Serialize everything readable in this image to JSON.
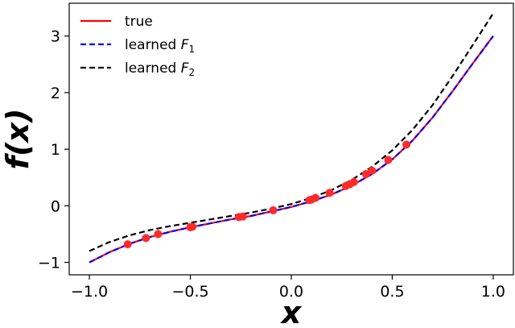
{
  "chart_data": {
    "type": "line",
    "xlabel": "x",
    "ylabel": "f(x)",
    "xlim": [
      -1.1,
      1.1
    ],
    "ylim": [
      -1.22,
      3.58
    ],
    "xticks": [
      -1.0,
      -0.5,
      0.0,
      0.5,
      1.0
    ],
    "xtick_labels": [
      "−1.0",
      "−0.5",
      "0.0",
      "0.5",
      "1.0"
    ],
    "yticks": [
      -1,
      0,
      1,
      2,
      3
    ],
    "ytick_labels": [
      "−1",
      "0",
      "1",
      "2",
      "3"
    ],
    "grid": false,
    "legend_position": "top-left",
    "series": [
      {
        "name": "true",
        "style": "solid",
        "color": "#ff0000",
        "x": [
          -1.0,
          -0.9,
          -0.8,
          -0.7,
          -0.6,
          -0.5,
          -0.4,
          -0.3,
          -0.2,
          -0.1,
          0.0,
          0.1,
          0.2,
          0.3,
          0.4,
          0.5,
          0.6,
          0.7,
          0.8,
          0.9,
          1.0
        ],
        "y": [
          -1.0,
          -0.82,
          -0.67,
          -0.55,
          -0.46,
          -0.38,
          -0.31,
          -0.24,
          -0.18,
          -0.1,
          -0.02,
          0.08,
          0.2,
          0.36,
          0.56,
          0.82,
          1.15,
          1.56,
          2.03,
          2.52,
          3.0
        ]
      },
      {
        "name": "learned ",
        "name_sub": "1",
        "name_var": "F",
        "style": "dashed",
        "color": "#0000ff",
        "x": [
          -1.0,
          -0.9,
          -0.8,
          -0.7,
          -0.6,
          -0.5,
          -0.4,
          -0.3,
          -0.2,
          -0.1,
          0.0,
          0.1,
          0.2,
          0.3,
          0.4,
          0.5,
          0.6,
          0.7,
          0.8,
          0.9,
          1.0
        ],
        "y": [
          -1.0,
          -0.82,
          -0.67,
          -0.55,
          -0.46,
          -0.38,
          -0.31,
          -0.24,
          -0.18,
          -0.1,
          -0.02,
          0.08,
          0.2,
          0.36,
          0.56,
          0.82,
          1.15,
          1.56,
          2.03,
          2.52,
          3.0
        ]
      },
      {
        "name": "learned ",
        "name_sub": "2",
        "name_var": "F",
        "style": "dashed",
        "color": "#000000",
        "x": [
          -1.0,
          -0.9,
          -0.8,
          -0.7,
          -0.6,
          -0.5,
          -0.4,
          -0.3,
          -0.2,
          -0.1,
          0.0,
          0.1,
          0.2,
          0.3,
          0.4,
          0.5,
          0.6,
          0.7,
          0.8,
          0.9,
          1.0
        ],
        "y": [
          -0.8,
          -0.64,
          -0.52,
          -0.43,
          -0.36,
          -0.3,
          -0.24,
          -0.18,
          -0.12,
          -0.05,
          0.03,
          0.14,
          0.28,
          0.46,
          0.69,
          0.98,
          1.34,
          1.78,
          2.3,
          2.85,
          3.4
        ]
      }
    ],
    "scatter": {
      "color": "#ff2a2a",
      "x": [
        -0.81,
        -0.72,
        -0.66,
        -0.5,
        -0.49,
        -0.26,
        -0.24,
        -0.09,
        0.09,
        0.1,
        0.12,
        0.19,
        0.27,
        0.29,
        0.31,
        0.37,
        0.4,
        0.48,
        0.57
      ],
      "y": [
        -0.68,
        -0.57,
        -0.5,
        -0.38,
        -0.37,
        -0.2,
        -0.19,
        -0.08,
        0.1,
        0.11,
        0.14,
        0.23,
        0.35,
        0.38,
        0.42,
        0.56,
        0.62,
        0.81,
        1.08
      ]
    }
  }
}
